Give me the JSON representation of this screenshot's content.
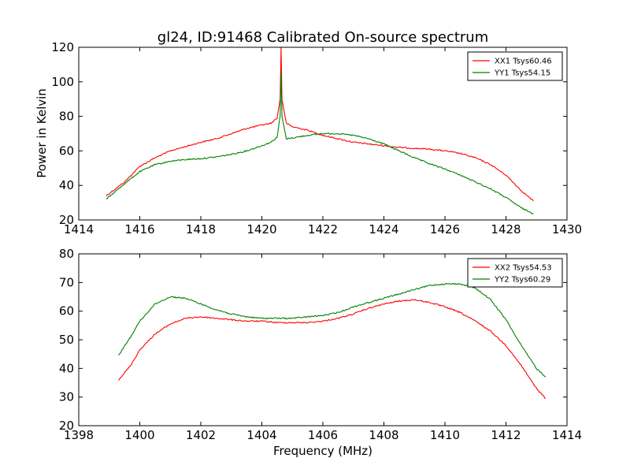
{
  "figure": {
    "title": "gl24, ID:91468 Calibrated On-source spectrum",
    "ylabel": "Power in Kelvin",
    "xlabel": "Frequency (MHz)"
  },
  "colors": {
    "red": "#ff0000",
    "green": "#008000"
  },
  "chart_data": [
    {
      "type": "line",
      "title": "gl24, ID:91468 Calibrated On-source spectrum",
      "xlabel": "",
      "ylabel": "Power in Kelvin",
      "xlim": [
        1414,
        1430
      ],
      "ylim": [
        20,
        120
      ],
      "xticks": [
        1414,
        1416,
        1418,
        1420,
        1422,
        1424,
        1426,
        1428,
        1430
      ],
      "yticks": [
        20,
        40,
        60,
        80,
        100,
        120
      ],
      "grid": false,
      "legend_position": "top-right",
      "series": [
        {
          "name": "XX1 Tsys60.46",
          "color": "#ff0000",
          "points": [
            [
              1414.9,
              34
            ],
            [
              1415.5,
              42
            ],
            [
              1416,
              51
            ],
            [
              1416.5,
              56
            ],
            [
              1417,
              60
            ],
            [
              1417.5,
              62.5
            ],
            [
              1418,
              65
            ],
            [
              1418.5,
              67
            ],
            [
              1419,
              70
            ],
            [
              1419.5,
              73
            ],
            [
              1420,
              75
            ],
            [
              1420.3,
              76
            ],
            [
              1420.5,
              79
            ],
            [
              1420.6,
              90
            ],
            [
              1420.63,
              120
            ],
            [
              1420.66,
              90
            ],
            [
              1420.8,
              76
            ],
            [
              1421,
              74
            ],
            [
              1421.5,
              72
            ],
            [
              1422,
              69
            ],
            [
              1422.5,
              67
            ],
            [
              1423,
              65
            ],
            [
              1423.5,
              64
            ],
            [
              1424,
              63
            ],
            [
              1424.5,
              62
            ],
            [
              1425,
              61.5
            ],
            [
              1425.5,
              61
            ],
            [
              1426,
              60
            ],
            [
              1426.5,
              58.5
            ],
            [
              1427,
              56
            ],
            [
              1427.5,
              52
            ],
            [
              1428,
              46
            ],
            [
              1428.5,
              37
            ],
            [
              1428.9,
              31
            ]
          ]
        },
        {
          "name": "YY1 Tsys54.15",
          "color": "#008000",
          "points": [
            [
              1414.9,
              32
            ],
            [
              1415.5,
              41
            ],
            [
              1416,
              48
            ],
            [
              1416.5,
              52
            ],
            [
              1417,
              54
            ],
            [
              1417.5,
              55
            ],
            [
              1418,
              55.5
            ],
            [
              1418.5,
              56.5
            ],
            [
              1419,
              58
            ],
            [
              1419.5,
              60
            ],
            [
              1420,
              63
            ],
            [
              1420.3,
              65
            ],
            [
              1420.5,
              68
            ],
            [
              1420.6,
              80
            ],
            [
              1420.63,
              106
            ],
            [
              1420.66,
              80
            ],
            [
              1420.8,
              67
            ],
            [
              1421,
              67.5
            ],
            [
              1421.5,
              69
            ],
            [
              1422,
              70
            ],
            [
              1422.5,
              70
            ],
            [
              1423,
              69
            ],
            [
              1423.5,
              67
            ],
            [
              1424,
              64
            ],
            [
              1424.5,
              60
            ],
            [
              1425,
              56
            ],
            [
              1425.5,
              52.5
            ],
            [
              1426,
              49.5
            ],
            [
              1426.5,
              46
            ],
            [
              1427,
              42
            ],
            [
              1427.5,
              38
            ],
            [
              1428,
              33
            ],
            [
              1428.5,
              27
            ],
            [
              1428.9,
              23.5
            ]
          ]
        }
      ]
    },
    {
      "type": "line",
      "title": "",
      "xlabel": "Frequency (MHz)",
      "ylabel": "",
      "xlim": [
        1398,
        1414
      ],
      "ylim": [
        20,
        80
      ],
      "xticks": [
        1398,
        1400,
        1402,
        1404,
        1406,
        1408,
        1410,
        1412,
        1414
      ],
      "yticks": [
        20,
        30,
        40,
        50,
        60,
        70,
        80
      ],
      "grid": false,
      "legend_position": "top-right",
      "series": [
        {
          "name": "XX2 Tsys54.53",
          "color": "#ff0000",
          "points": [
            [
              1399.3,
              36
            ],
            [
              1399.7,
              41
            ],
            [
              1400,
              46.5
            ],
            [
              1400.5,
              52
            ],
            [
              1401,
              55.5
            ],
            [
              1401.5,
              57.5
            ],
            [
              1402,
              58
            ],
            [
              1402.5,
              57.5
            ],
            [
              1403,
              57
            ],
            [
              1403.5,
              56.5
            ],
            [
              1404,
              56.5
            ],
            [
              1404.5,
              56
            ],
            [
              1405,
              56
            ],
            [
              1405.5,
              56
            ],
            [
              1406,
              56.5
            ],
            [
              1406.5,
              57.5
            ],
            [
              1407,
              59
            ],
            [
              1407.5,
              61
            ],
            [
              1408,
              62.5
            ],
            [
              1408.5,
              63.5
            ],
            [
              1409,
              64
            ],
            [
              1409.5,
              63
            ],
            [
              1410,
              61.5
            ],
            [
              1410.5,
              59.5
            ],
            [
              1411,
              56.5
            ],
            [
              1411.5,
              53
            ],
            [
              1412,
              48
            ],
            [
              1412.5,
              41
            ],
            [
              1413,
              33
            ],
            [
              1413.3,
              29.5
            ]
          ]
        },
        {
          "name": "YY2 Tsys60.29",
          "color": "#008000",
          "points": [
            [
              1399.3,
              44.5
            ],
            [
              1399.7,
              51
            ],
            [
              1400,
              56.5
            ],
            [
              1400.5,
              62.5
            ],
            [
              1401,
              65
            ],
            [
              1401.5,
              64.5
            ],
            [
              1402,
              62.5
            ],
            [
              1402.5,
              60.5
            ],
            [
              1403,
              59
            ],
            [
              1403.5,
              58
            ],
            [
              1404,
              57.5
            ],
            [
              1404.5,
              57.5
            ],
            [
              1405,
              57.5
            ],
            [
              1405.5,
              58
            ],
            [
              1406,
              58.5
            ],
            [
              1406.5,
              59.5
            ],
            [
              1407,
              61.5
            ],
            [
              1407.5,
              63
            ],
            [
              1408,
              64.5
            ],
            [
              1408.5,
              66
            ],
            [
              1409,
              67.5
            ],
            [
              1409.5,
              69
            ],
            [
              1410,
              69.5
            ],
            [
              1410.5,
              69.5
            ],
            [
              1411,
              68
            ],
            [
              1411.5,
              64
            ],
            [
              1412,
              57
            ],
            [
              1412.5,
              48
            ],
            [
              1413,
              40
            ],
            [
              1413.3,
              37
            ]
          ]
        }
      ]
    }
  ]
}
